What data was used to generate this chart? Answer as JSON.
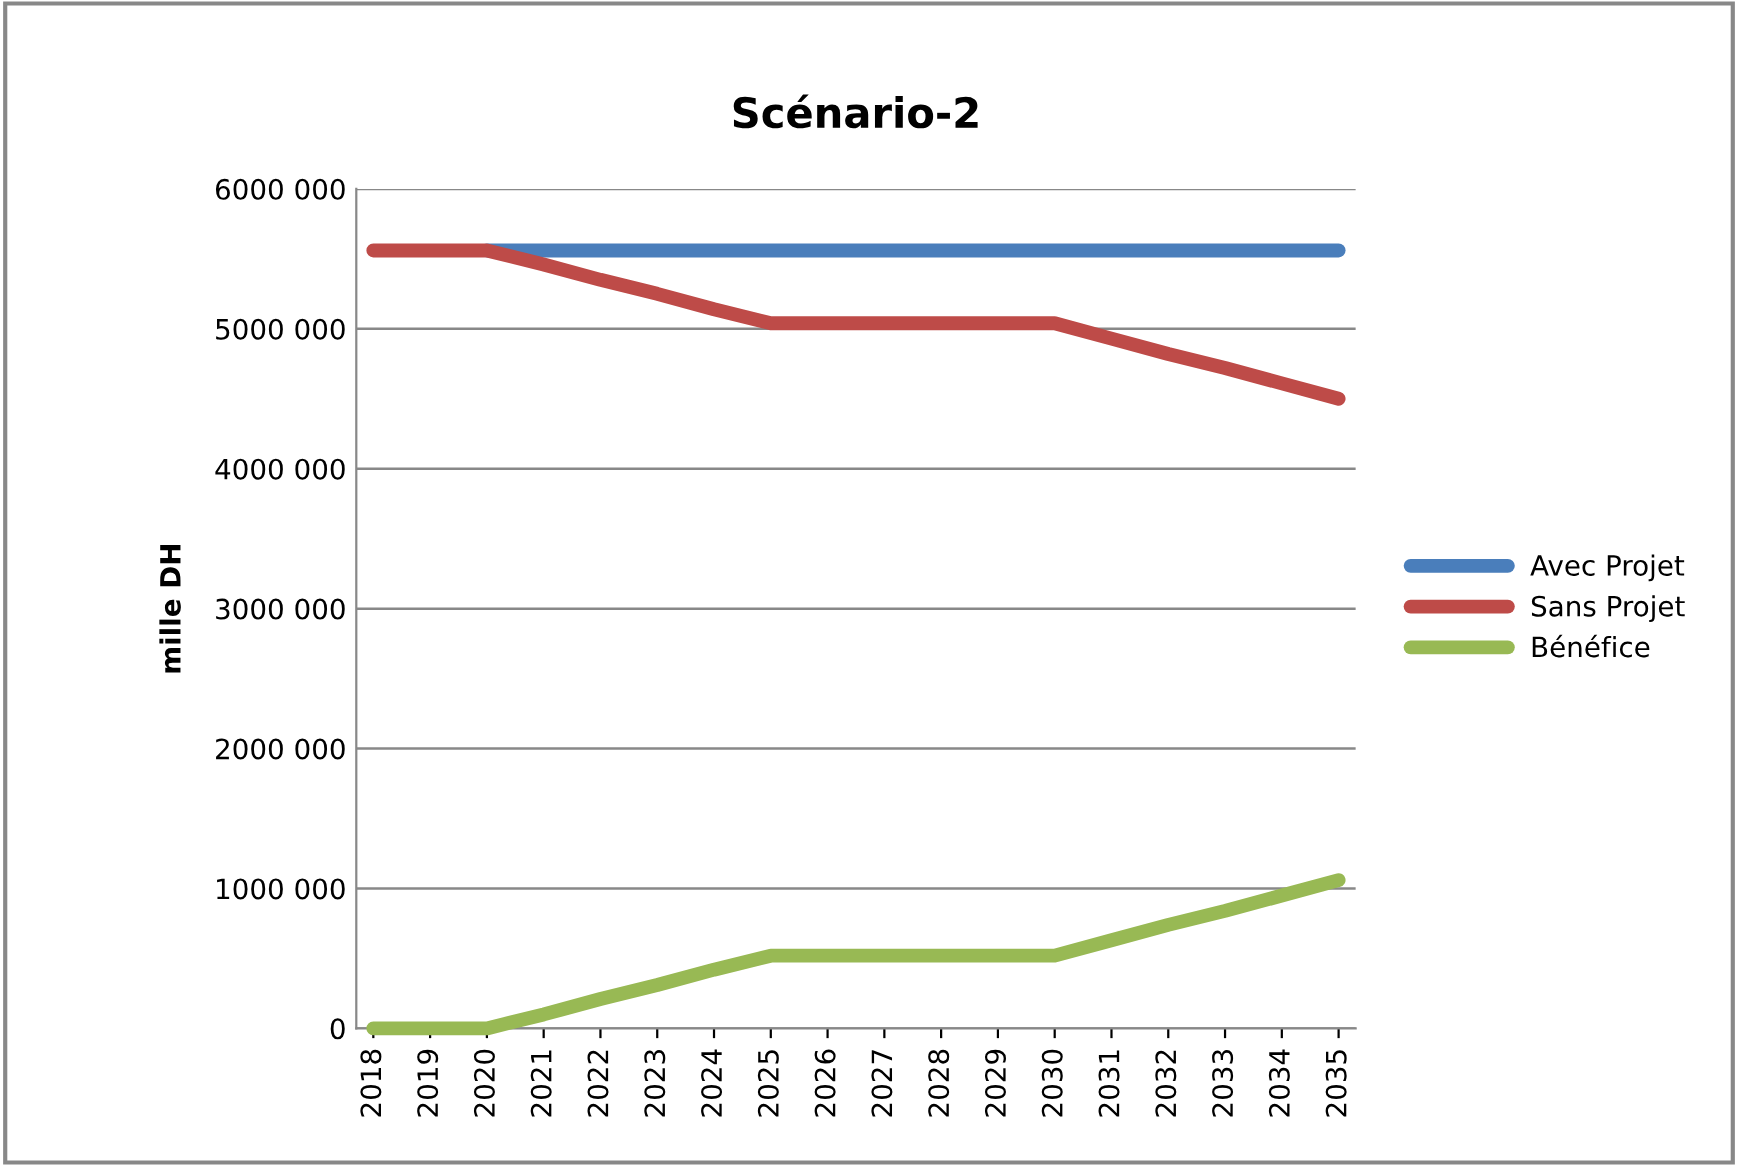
{
  "chart_data": {
    "type": "line",
    "title": "Scénario-2",
    "ylabel": "mille DH",
    "categories": [
      "2018",
      "2019",
      "2020",
      "2021",
      "2022",
      "2023",
      "2024",
      "2025",
      "2026",
      "2027",
      "2028",
      "2029",
      "2030",
      "2031",
      "2032",
      "2033",
      "2034",
      "2035"
    ],
    "series": [
      {
        "name": "Avec Projet",
        "color": "#4a7ebb",
        "values": [
          null,
          null,
          5560000,
          5560000,
          5560000,
          5560000,
          5560000,
          5560000,
          5560000,
          5560000,
          5560000,
          5560000,
          5560000,
          5560000,
          5560000,
          5560000,
          5560000,
          5560000
        ]
      },
      {
        "name": "Sans Projet",
        "color": "#be4b48",
        "values": [
          5560000,
          5560000,
          5560000,
          5460000,
          5350000,
          5250000,
          5140000,
          5040000,
          5040000,
          5040000,
          5040000,
          5040000,
          5040000,
          4930000,
          4820000,
          4720000,
          4610000,
          4500000
        ]
      },
      {
        "name": "Bénéfice",
        "color": "#98b954",
        "values": [
          0,
          0,
          0,
          100000,
          210000,
          310000,
          420000,
          520000,
          520000,
          520000,
          520000,
          520000,
          520000,
          630000,
          740000,
          840000,
          950000,
          1060000
        ]
      }
    ],
    "ylim": [
      0,
      6000000
    ],
    "yticks": [
      0,
      {
        "value": 1000000,
        "label": "1000 000"
      },
      {
        "value": 2000000,
        "label": "2000 000"
      },
      {
        "value": 3000000,
        "label": "3000 000"
      },
      {
        "value": 4000000,
        "label": "4000 000"
      },
      {
        "value": 5000000,
        "label": "5000 000"
      },
      {
        "value": 6000000,
        "label": "6000 000"
      }
    ],
    "grid": "y",
    "legend": "right",
    "marker": "none",
    "line_style": "solid"
  }
}
